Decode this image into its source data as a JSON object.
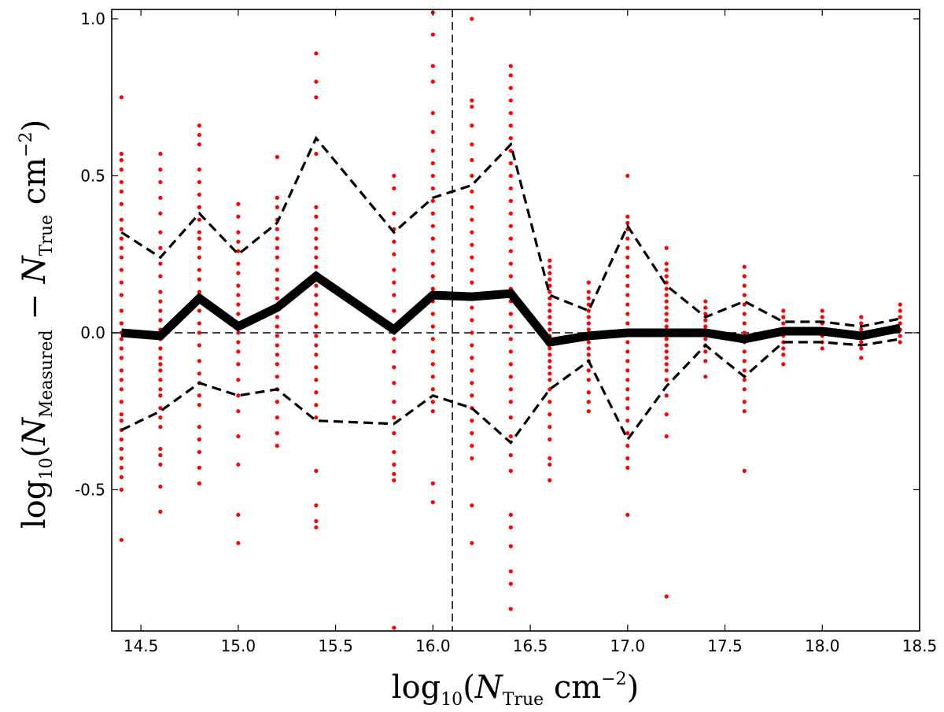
{
  "chart_data": {
    "type": "scatter",
    "title": "",
    "xlabel": {
      "prefix": "log",
      "base_sub": "10",
      "open": "(",
      "var": "N",
      "var_sub": "True",
      "unit": " cm",
      "unit_sup": "−2",
      "close": ")"
    },
    "ylabel": {
      "prefix": "log",
      "base_sub": "10",
      "open": "(",
      "var1": "N",
      "var1_sub": "Measured",
      "minus": " − ",
      "var2": "N",
      "var2_sub": "True",
      "unit": " cm",
      "unit_sup": "−2",
      "close": ")"
    },
    "xlim": [
      14.35,
      18.5
    ],
    "ylim": [
      -0.95,
      1.03
    ],
    "x_ticks": [
      14.5,
      15.0,
      15.5,
      16.0,
      16.5,
      17.0,
      17.5,
      18.0,
      18.5
    ],
    "x_tick_labels": [
      "14.5",
      "15.0",
      "15.5",
      "16.0",
      "16.5",
      "17.0",
      "17.5",
      "18.0",
      "18.5"
    ],
    "y_ticks": [
      -0.5,
      0.0,
      0.5,
      1.0
    ],
    "y_tick_labels": [
      "-0.5",
      "0.0",
      "0.5",
      "1.0"
    ],
    "grid": false,
    "reference_lines": {
      "vertical_x": 16.1,
      "horizontal_y": 0.0
    },
    "colors": {
      "points": "#ff0000",
      "lines": "#000000"
    },
    "series": [
      {
        "kind": "scatter",
        "points": [
          {
            "x": 14.4,
            "y": [
              0.75,
              0.57,
              0.55,
              0.52,
              0.48,
              0.45,
              0.41,
              0.36,
              0.33,
              0.3,
              0.27,
              0.24,
              0.2,
              0.16,
              0.12,
              0.07,
              0.03,
              0.0,
              -0.02,
              -0.05,
              -0.08,
              -0.12,
              -0.15,
              -0.18,
              -0.22,
              -0.26,
              -0.28,
              -0.31,
              -0.34,
              -0.37,
              -0.4,
              -0.43,
              -0.46,
              -0.5,
              -0.66
            ]
          },
          {
            "x": 14.6,
            "y": [
              0.57,
              0.52,
              0.48,
              0.43,
              0.38,
              0.32,
              0.27,
              0.22,
              0.18,
              0.13,
              0.1,
              0.07,
              0.04,
              0.01,
              -0.02,
              -0.05,
              -0.08,
              -0.1,
              -0.12,
              -0.15,
              -0.18,
              -0.2,
              -0.24,
              -0.27,
              -0.3,
              -0.37,
              -0.39,
              -0.42,
              -0.49,
              -0.57
            ]
          },
          {
            "x": 14.8,
            "y": [
              0.66,
              0.63,
              0.6,
              0.52,
              0.48,
              0.44,
              0.4,
              0.36,
              0.32,
              0.3,
              0.27,
              0.24,
              0.2,
              0.17,
              0.13,
              0.1,
              0.07,
              0.03,
              0.0,
              -0.04,
              -0.09,
              -0.13,
              -0.16,
              -0.2,
              -0.23,
              -0.3,
              -0.34,
              -0.38,
              -0.43,
              -0.48
            ]
          },
          {
            "x": 15.0,
            "y": [
              0.41,
              0.37,
              0.32,
              0.29,
              0.26,
              0.22,
              0.19,
              0.15,
              0.12,
              0.09,
              0.06,
              0.03,
              0.0,
              -0.03,
              -0.06,
              -0.1,
              -0.15,
              -0.2,
              -0.25,
              -0.33,
              -0.42,
              -0.58,
              -0.67
            ]
          },
          {
            "x": 15.2,
            "y": [
              0.56,
              0.43,
              0.4,
              0.36,
              0.33,
              0.3,
              0.27,
              0.24,
              0.2,
              0.17,
              0.14,
              0.11,
              0.08,
              0.05,
              0.02,
              -0.01,
              -0.04,
              -0.07,
              -0.1,
              -0.14,
              -0.18,
              -0.22,
              -0.27,
              -0.32,
              -0.36
            ]
          },
          {
            "x": 15.4,
            "y": [
              0.89,
              0.8,
              0.75,
              0.57,
              0.4,
              0.37,
              0.33,
              0.3,
              0.27,
              0.24,
              0.21,
              0.18,
              0.15,
              0.12,
              0.09,
              0.06,
              0.02,
              -0.01,
              -0.04,
              -0.07,
              -0.11,
              -0.15,
              -0.19,
              -0.23,
              -0.27,
              -0.44,
              -0.55,
              -0.6,
              -0.62
            ]
          },
          {
            "x": 15.8,
            "y": [
              0.5,
              0.46,
              0.38,
              0.33,
              0.29,
              0.25,
              0.2,
              0.16,
              0.12,
              0.07,
              0.02,
              -0.02,
              -0.06,
              -0.11,
              -0.16,
              -0.22,
              -0.27,
              -0.32,
              -0.38,
              -0.42,
              -0.45,
              -0.47,
              -0.94
            ]
          },
          {
            "x": 16.0,
            "y": [
              1.02,
              0.95,
              0.85,
              0.8,
              0.7,
              0.64,
              0.58,
              0.54,
              0.5,
              0.46,
              0.42,
              0.38,
              0.34,
              0.3,
              0.26,
              0.22,
              0.18,
              0.14,
              0.1,
              0.06,
              0.02,
              -0.02,
              -0.06,
              -0.1,
              -0.14,
              -0.18,
              -0.22,
              -0.25,
              -0.48,
              -0.54
            ]
          },
          {
            "x": 16.2,
            "y": [
              1.0,
              0.74,
              0.72,
              0.66,
              0.6,
              0.55,
              0.5,
              0.45,
              0.4,
              0.36,
              0.32,
              0.28,
              0.24,
              0.2,
              0.16,
              0.12,
              0.08,
              0.04,
              0.0,
              -0.04,
              -0.08,
              -0.12,
              -0.16,
              -0.2,
              -0.24,
              -0.28,
              -0.32,
              -0.36,
              -0.4,
              -0.55,
              -0.67
            ]
          },
          {
            "x": 16.4,
            "y": [
              0.85,
              0.82,
              0.78,
              0.74,
              0.7,
              0.66,
              0.62,
              0.58,
              0.54,
              0.5,
              0.46,
              0.42,
              0.38,
              0.34,
              0.3,
              0.26,
              0.22,
              0.18,
              0.14,
              0.1,
              0.06,
              0.02,
              -0.02,
              -0.06,
              -0.1,
              -0.14,
              -0.18,
              -0.22,
              -0.27,
              -0.33,
              -0.39,
              -0.44,
              -0.58,
              -0.62,
              -0.68,
              -0.76,
              -0.8,
              -0.88
            ]
          },
          {
            "x": 16.6,
            "y": [
              0.23,
              0.21,
              0.19,
              0.17,
              0.15,
              0.13,
              0.11,
              0.09,
              0.07,
              0.05,
              0.03,
              0.01,
              -0.01,
              -0.03,
              -0.05,
              -0.07,
              -0.09,
              -0.11,
              -0.13,
              -0.15,
              -0.18,
              -0.22,
              -0.26,
              -0.3,
              -0.34,
              -0.4,
              -0.42,
              -0.47
            ]
          },
          {
            "x": 16.8,
            "y": [
              0.16,
              0.13,
              0.11,
              0.09,
              0.07,
              0.05,
              0.03,
              0.01,
              -0.01,
              -0.03,
              -0.05,
              -0.07,
              -0.09,
              -0.12,
              -0.15,
              -0.19,
              -0.22,
              -0.25
            ]
          },
          {
            "x": 17.0,
            "y": [
              0.5,
              0.37,
              0.35,
              0.33,
              0.3,
              0.27,
              0.24,
              0.21,
              0.18,
              0.15,
              0.12,
              0.09,
              0.06,
              0.03,
              0.0,
              -0.03,
              -0.06,
              -0.09,
              -0.12,
              -0.15,
              -0.18,
              -0.21,
              -0.24,
              -0.28,
              -0.32,
              -0.36,
              -0.4,
              -0.43,
              -0.58
            ]
          },
          {
            "x": 17.2,
            "y": [
              0.27,
              0.22,
              0.2,
              0.18,
              0.16,
              0.14,
              0.12,
              0.1,
              0.08,
              0.06,
              0.04,
              0.02,
              0.0,
              -0.02,
              -0.04,
              -0.06,
              -0.08,
              -0.1,
              -0.12,
              -0.15,
              -0.2,
              -0.26,
              -0.33,
              -0.84
            ]
          },
          {
            "x": 17.4,
            "y": [
              0.1,
              0.08,
              0.06,
              0.04,
              0.02,
              0.0,
              -0.02,
              -0.04,
              -0.06,
              -0.09,
              -0.14
            ]
          },
          {
            "x": 17.6,
            "y": [
              0.21,
              0.18,
              0.15,
              0.12,
              0.09,
              0.06,
              0.03,
              0.0,
              -0.03,
              -0.06,
              -0.09,
              -0.12,
              -0.15,
              -0.18,
              -0.22,
              -0.25,
              -0.44
            ]
          },
          {
            "x": 17.8,
            "y": [
              0.07,
              0.05,
              0.03,
              0.01,
              -0.01,
              -0.03,
              -0.05,
              -0.07,
              -0.1
            ]
          },
          {
            "x": 18.0,
            "y": [
              0.07,
              0.05,
              0.03,
              0.01,
              -0.01,
              -0.03,
              -0.05
            ]
          },
          {
            "x": 18.2,
            "y": [
              0.05,
              0.03,
              0.01,
              -0.01,
              -0.03,
              -0.05,
              -0.08
            ]
          },
          {
            "x": 18.4,
            "y": [
              0.09,
              0.07,
              0.05,
              0.03,
              0.01,
              -0.01,
              -0.03
            ]
          }
        ]
      },
      {
        "kind": "line",
        "style": "solid-thick",
        "x": [
          14.4,
          14.6,
          14.8,
          15.0,
          15.2,
          15.4,
          15.8,
          16.0,
          16.2,
          16.4,
          16.6,
          16.8,
          17.0,
          17.2,
          17.4,
          17.6,
          17.8,
          18.0,
          18.2,
          18.4
        ],
        "y": [
          0.0,
          -0.01,
          0.11,
          0.02,
          0.08,
          0.18,
          0.01,
          0.12,
          0.115,
          0.125,
          -0.03,
          -0.01,
          0.0,
          0.0,
          0.0,
          -0.02,
          0.005,
          0.005,
          -0.01,
          0.015
        ]
      },
      {
        "kind": "line",
        "style": "dashed",
        "x": [
          14.4,
          14.6,
          14.8,
          15.0,
          15.2,
          15.4,
          15.8,
          16.0,
          16.2,
          16.4,
          16.6,
          16.8,
          17.0,
          17.2,
          17.4,
          17.6,
          17.8,
          18.0,
          18.2,
          18.4
        ],
        "y": [
          0.32,
          0.24,
          0.38,
          0.25,
          0.35,
          0.62,
          0.32,
          0.43,
          0.47,
          0.6,
          0.12,
          0.07,
          0.34,
          0.15,
          0.05,
          0.1,
          0.035,
          0.035,
          0.02,
          0.045
        ]
      },
      {
        "kind": "line",
        "style": "dashed",
        "x": [
          14.4,
          14.6,
          14.8,
          15.0,
          15.2,
          15.4,
          15.8,
          16.0,
          16.2,
          16.4,
          16.6,
          16.8,
          17.0,
          17.2,
          17.4,
          17.6,
          17.8,
          18.0,
          18.2,
          18.4
        ],
        "y": [
          -0.31,
          -0.25,
          -0.16,
          -0.2,
          -0.18,
          -0.28,
          -0.29,
          -0.2,
          -0.24,
          -0.35,
          -0.18,
          -0.09,
          -0.34,
          -0.17,
          -0.04,
          -0.14,
          -0.03,
          -0.03,
          -0.04,
          -0.02
        ]
      }
    ]
  }
}
